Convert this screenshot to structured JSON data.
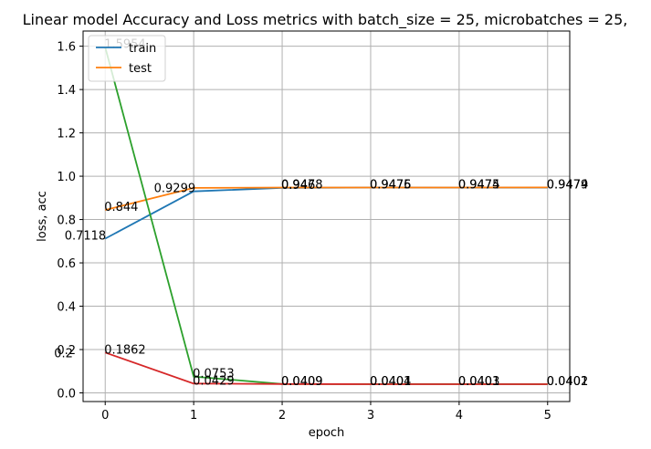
{
  "chart_data": {
    "type": "line",
    "title": "Linear model Accuracy and Loss metrics with batch_size = 25, microbatches = 25,",
    "xlabel": "epoch",
    "ylabel": "loss, acc",
    "x": [
      0,
      1,
      2,
      3,
      4,
      5
    ],
    "xlim": [
      -0.25,
      5.25
    ],
    "ylim": [
      -0.04,
      1.67
    ],
    "xticks": [
      "0",
      "1",
      "2",
      "3",
      "4",
      "5"
    ],
    "yticks": [
      "0.0",
      "0.2",
      "0.4",
      "0.6",
      "0.8",
      "1.0",
      "1.2",
      "1.4",
      "1.6"
    ],
    "grid": true,
    "legend_position": "upper-left",
    "series": [
      {
        "name": "train",
        "color": "#1f77b4",
        "values": [
          0.7118,
          0.9299,
          0.946,
          0.9475,
          0.9474,
          0.9474
        ],
        "labels": [
          "0.7118",
          "0.9299",
          "0.946",
          "0.9475",
          "0.9474",
          "0.9474"
        ]
      },
      {
        "name": "test",
        "color": "#ff7f0e",
        "values": [
          0.844,
          0.946,
          0.9478,
          0.9476,
          0.9475,
          0.9479
        ],
        "labels": [
          "0.844",
          "",
          "0.9478",
          "0.9476",
          "0.9475",
          "0.9479"
        ]
      },
      {
        "color": "#2ca02c",
        "values": [
          1.5954,
          0.0753,
          0.0409,
          0.0404,
          0.0403,
          0.0402
        ],
        "labels": [
          "1.5954",
          "0.0753",
          "0.0409",
          "0.0404",
          "0.0403",
          "0.0402"
        ]
      },
      {
        "color": "#d62728",
        "values": [
          0.1862,
          0.0429,
          0.0409,
          0.0401,
          0.0401,
          0.0401
        ],
        "labels": [
          "0.1862",
          "0.0429",
          "0.0409",
          "0.0401",
          "0.0401",
          "0.0401"
        ]
      }
    ],
    "stray_labels": [
      "0.2"
    ]
  }
}
